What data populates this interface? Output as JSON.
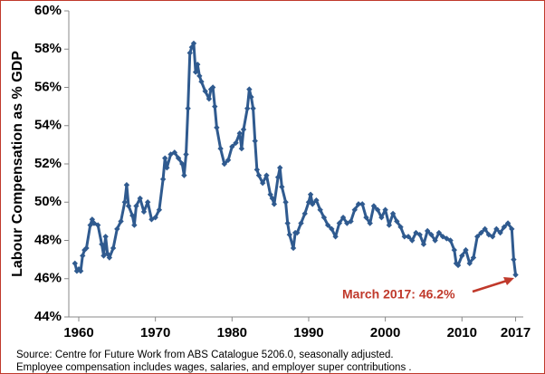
{
  "chart_data": {
    "type": "line",
    "y_label": "Labour Compensation as % GDP",
    "color": "#2f5a8f",
    "grid": false,
    "xlim": [
      1958.7,
      2018
    ],
    "xticks": [
      1960,
      1970,
      1980,
      1990,
      2000,
      2010,
      2017
    ],
    "ylim": [
      44,
      60
    ],
    "yticks": [
      {
        "value": 44,
        "label": "44%"
      },
      {
        "value": 46,
        "label": "46%"
      },
      {
        "value": 48,
        "label": "48%"
      },
      {
        "value": 50,
        "label": "50%"
      },
      {
        "value": 52,
        "label": "52%"
      },
      {
        "value": 54,
        "label": "54%"
      },
      {
        "value": 56,
        "label": "56%"
      },
      {
        "value": 58,
        "label": "58%"
      },
      {
        "value": 60,
        "label": "60%"
      }
    ],
    "x": [
      1959.5,
      1959.75,
      1960,
      1960.25,
      1960.5,
      1960.75,
      1961,
      1961.5,
      1961.75,
      1962,
      1962.5,
      1963,
      1963.25,
      1963.5,
      1963.75,
      1964,
      1964.5,
      1965,
      1965.5,
      1966,
      1966.25,
      1966.5,
      1967,
      1967.25,
      1967.5,
      1968,
      1968.5,
      1969,
      1969.5,
      1970,
      1970.5,
      1971,
      1971.25,
      1971.5,
      1972,
      1972.5,
      1973,
      1973.5,
      1973.75,
      1974,
      1974.25,
      1974.5,
      1974.75,
      1975,
      1975.25,
      1975.5,
      1975.75,
      1976,
      1976.5,
      1977,
      1977.25,
      1977.5,
      1977.75,
      1978,
      1978.5,
      1979,
      1979.5,
      1980,
      1980.5,
      1981,
      1981.25,
      1981.5,
      1982,
      1982.25,
      1982.5,
      1982.75,
      1983,
      1983.25,
      1983.5,
      1984,
      1984.5,
      1985,
      1985.25,
      1985.5,
      1986,
      1986.25,
      1986.5,
      1987,
      1987.25,
      1987.5,
      1988,
      1988.25,
      1988.5,
      1989,
      1989.5,
      1990,
      1990.25,
      1990.5,
      1991,
      1991.5,
      1992,
      1992.5,
      1993,
      1993.5,
      1994,
      1994.5,
      1995,
      1995.5,
      1996,
      1996.5,
      1997,
      1997.5,
      1998,
      1998.5,
      1999,
      1999.5,
      2000,
      2000.5,
      2001,
      2001.5,
      2002,
      2002.5,
      2003,
      2003.5,
      2004,
      2004.5,
      2005,
      2005.5,
      2006,
      2006.5,
      2007,
      2007.5,
      2008,
      2008.5,
      2009,
      2009.25,
      2009.5,
      2010,
      2010.5,
      2011,
      2011.5,
      2012,
      2012.5,
      2013,
      2013.5,
      2014,
      2014.5,
      2015,
      2015.5,
      2016,
      2016.5,
      2016.75,
      2017
    ],
    "values": [
      46.8,
      46.4,
      46.5,
      46.4,
      47.2,
      47.5,
      47.6,
      48.8,
      49.1,
      48.9,
      48.8,
      47.8,
      47.2,
      48.2,
      47.3,
      47.1,
      47.6,
      48.6,
      49.0,
      50.0,
      50.9,
      49.8,
      49.3,
      48.8,
      49.8,
      50.2,
      49.5,
      50.0,
      49.1,
      49.2,
      49.6,
      51.2,
      52.3,
      51.8,
      52.5,
      52.6,
      52.3,
      52.0,
      51.4,
      52.5,
      54.9,
      57.8,
      58.1,
      58.3,
      56.8,
      57.2,
      56.6,
      56.3,
      55.8,
      55.4,
      55.9,
      56.0,
      55.0,
      53.9,
      52.8,
      52.0,
      52.2,
      52.9,
      53.1,
      53.6,
      52.8,
      53.8,
      54.9,
      55.9,
      55.5,
      54.9,
      53.2,
      51.7,
      51.4,
      51.0,
      51.4,
      50.4,
      50.2,
      49.9,
      51.3,
      51.8,
      50.8,
      50.0,
      48.9,
      48.3,
      47.6,
      48.4,
      48.4,
      48.9,
      49.4,
      50.0,
      50.4,
      49.9,
      50.1,
      49.6,
      49.2,
      48.8,
      48.6,
      48.2,
      48.9,
      49.2,
      48.9,
      49.0,
      49.6,
      49.9,
      49.9,
      49.2,
      48.9,
      49.8,
      49.6,
      49.2,
      49.6,
      48.8,
      49.4,
      49.0,
      48.7,
      48.2,
      48.2,
      48.0,
      48.4,
      48.3,
      47.8,
      48.5,
      48.3,
      48.0,
      48.4,
      48.2,
      48.1,
      48.0,
      47.5,
      46.8,
      46.7,
      47.2,
      47.5,
      46.8,
      47.1,
      48.2,
      48.4,
      48.6,
      48.3,
      48.2,
      48.6,
      48.4,
      48.7,
      48.9,
      48.6,
      47.0,
      46.2
    ],
    "annotation": "March 2017: 46.2%",
    "source": [
      "Source: Centre for Future Work from ABS Catalogue 5206.0, seasonally adjusted.",
      "Employee compensation  includes wages, salaries, and employer super contributions ."
    ]
  }
}
